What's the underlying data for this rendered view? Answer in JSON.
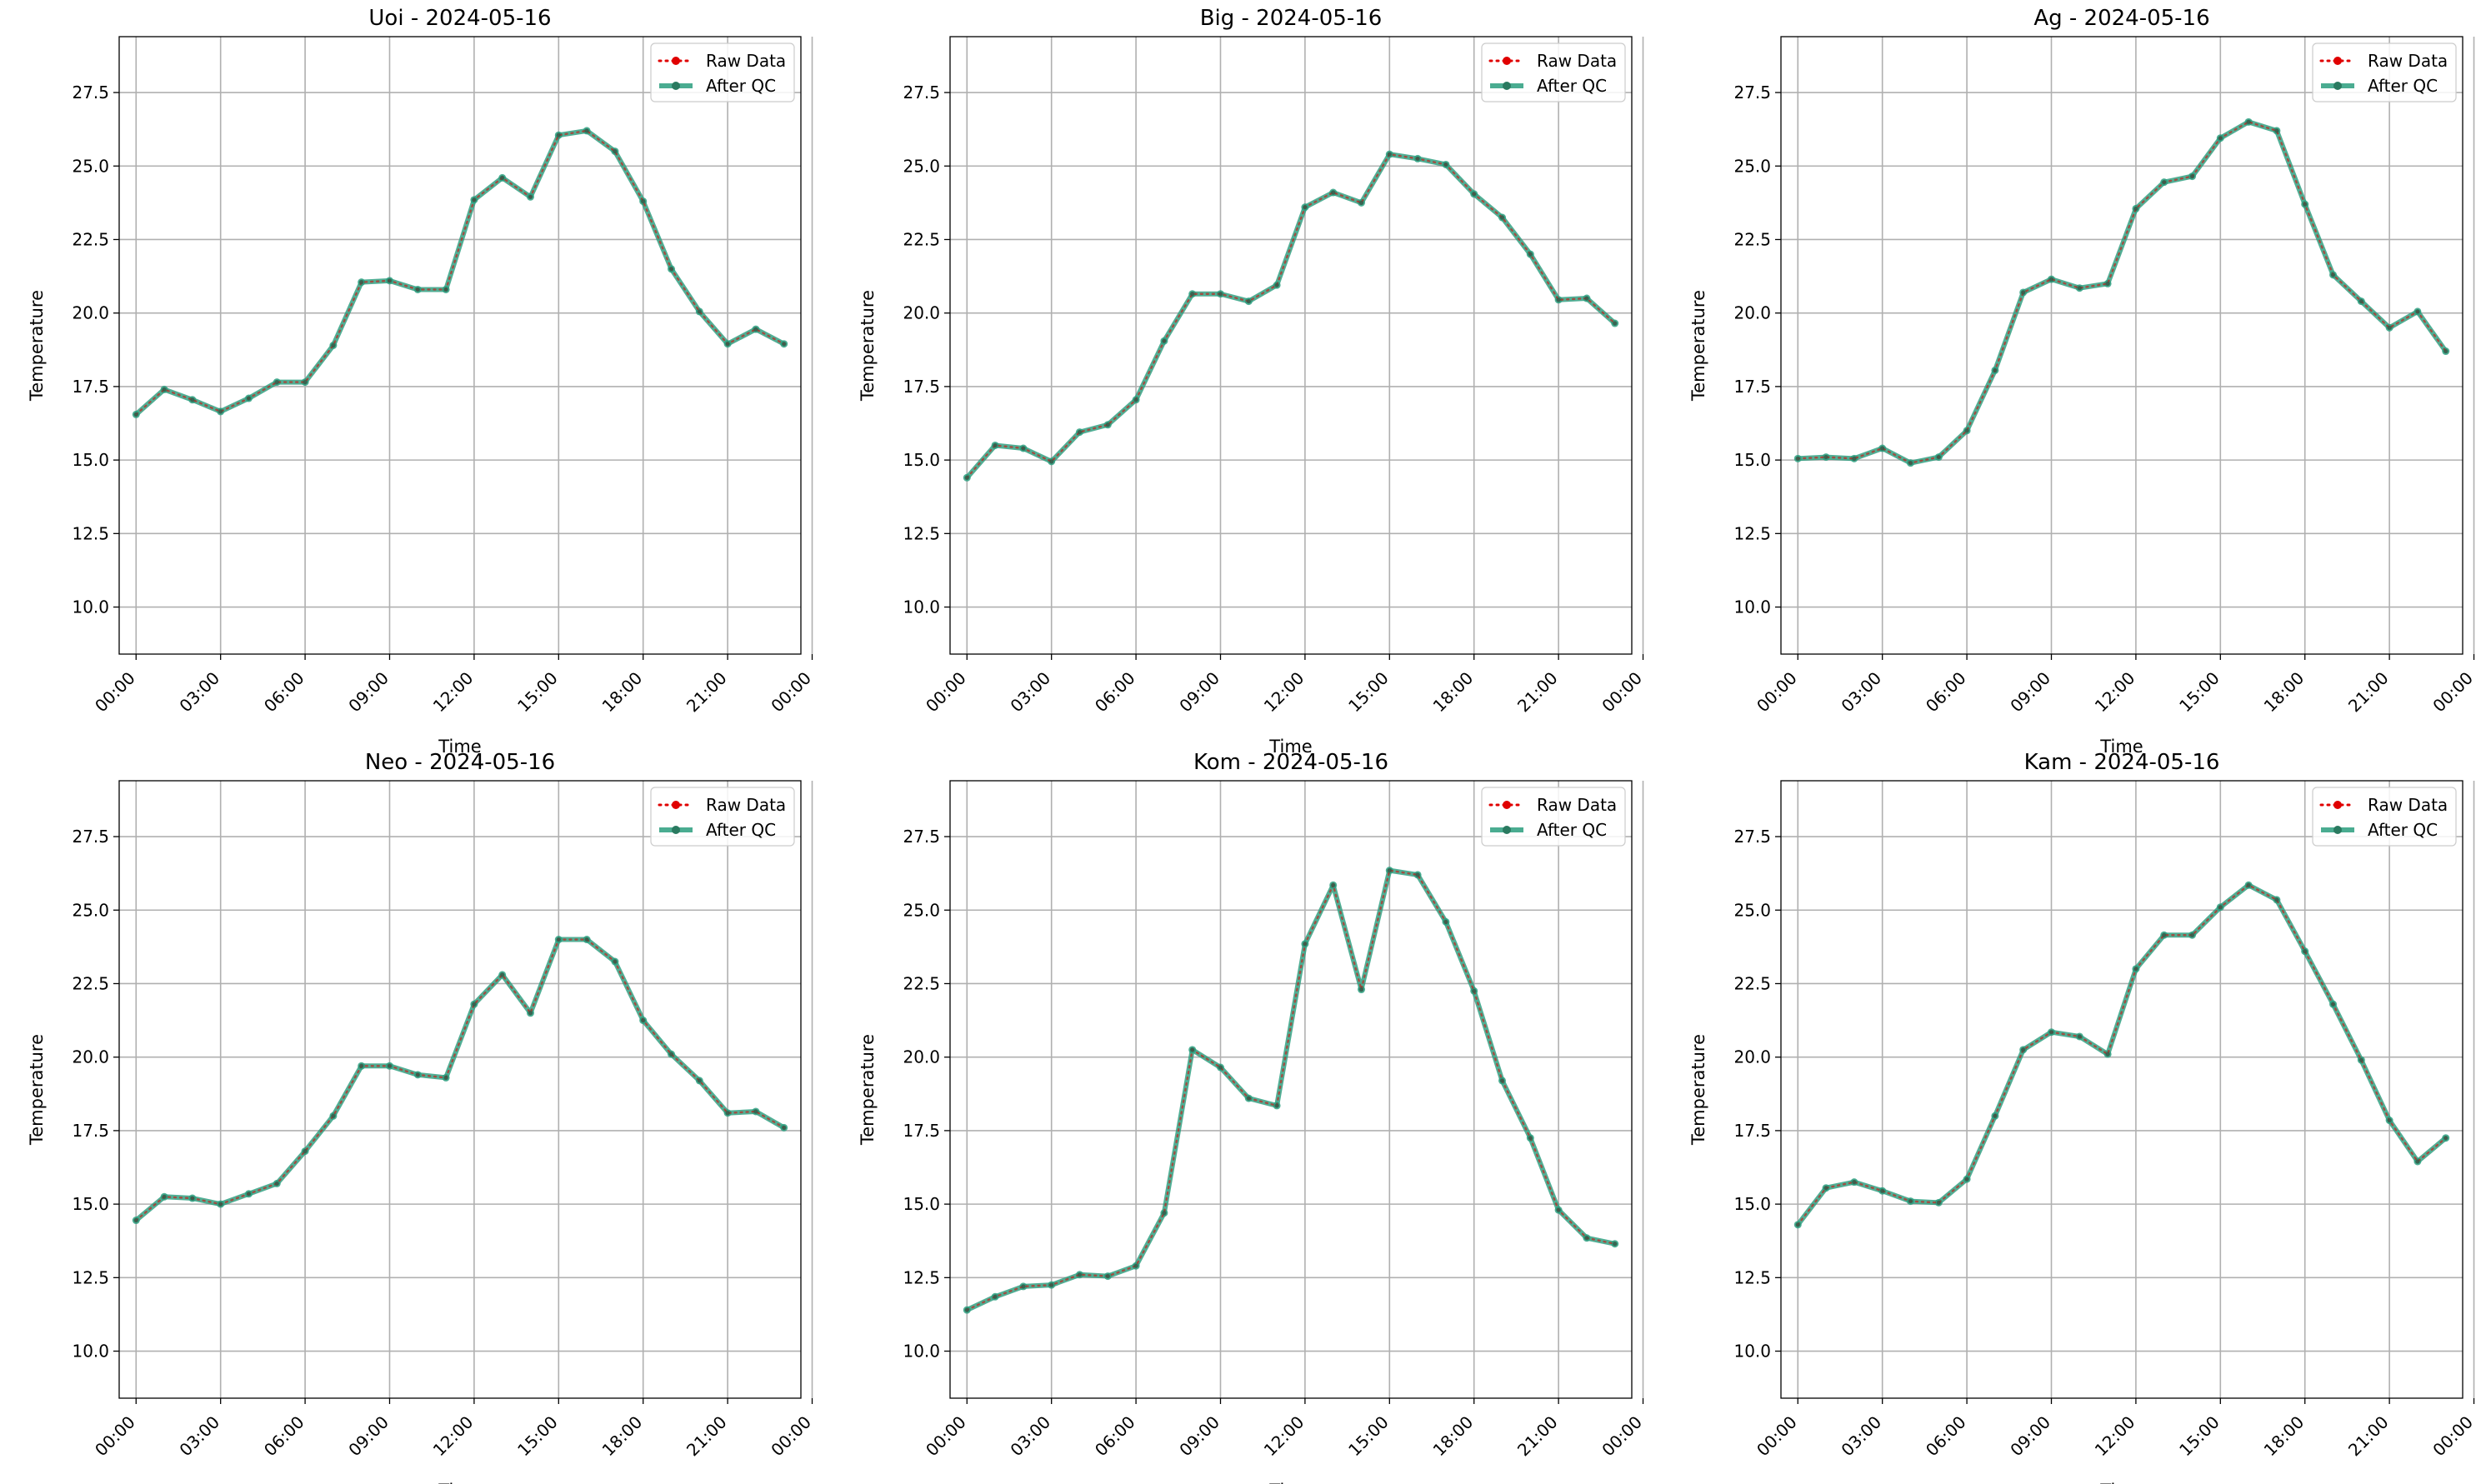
{
  "chart_data": [
    {
      "type": "line",
      "title": "Uoi - 2024-05-16",
      "xlabel": "Time",
      "ylabel": "Temperature",
      "ylim": [
        8.4,
        29.4
      ],
      "xlim": [
        -0.6,
        23.6
      ],
      "xticks": [
        "00:00",
        "03:00",
        "06:00",
        "09:00",
        "12:00",
        "15:00",
        "18:00",
        "21:00",
        "00:00"
      ],
      "yticks": [
        "10.0",
        "12.5",
        "15.0",
        "17.5",
        "20.0",
        "22.5",
        "25.0",
        "27.5"
      ],
      "grid": true,
      "legend": "top-right",
      "series": [
        {
          "name": "Raw Data",
          "color": "#e00000",
          "values": [
            16.55,
            17.4,
            17.05,
            16.65,
            17.1,
            17.65,
            17.65,
            18.9,
            21.05,
            21.1,
            20.8,
            20.8,
            23.85,
            24.6,
            23.95,
            26.05,
            26.2,
            25.5,
            23.8,
            21.5,
            20.05,
            18.95,
            19.45,
            18.95
          ]
        },
        {
          "name": "After QC",
          "color": "#2a9d7e",
          "values": [
            16.55,
            17.4,
            17.05,
            16.65,
            17.1,
            17.65,
            17.65,
            18.9,
            21.05,
            21.1,
            20.8,
            20.8,
            23.85,
            24.6,
            23.95,
            26.05,
            26.2,
            25.5,
            23.8,
            21.5,
            20.05,
            18.95,
            19.45,
            18.95
          ]
        }
      ]
    },
    {
      "type": "line",
      "title": "Big - 2024-05-16",
      "xlabel": "Time",
      "ylabel": "Temperature",
      "ylim": [
        8.4,
        29.4
      ],
      "xlim": [
        -0.6,
        23.6
      ],
      "xticks": [
        "00:00",
        "03:00",
        "06:00",
        "09:00",
        "12:00",
        "15:00",
        "18:00",
        "21:00",
        "00:00"
      ],
      "yticks": [
        "10.0",
        "12.5",
        "15.0",
        "17.5",
        "20.0",
        "22.5",
        "25.0",
        "27.5"
      ],
      "grid": true,
      "legend": "top-right",
      "series": [
        {
          "name": "Raw Data",
          "color": "#e00000",
          "values": [
            14.4,
            15.5,
            15.4,
            14.95,
            15.95,
            16.2,
            17.05,
            19.05,
            20.65,
            20.65,
            20.4,
            20.95,
            23.6,
            24.1,
            23.75,
            25.4,
            25.25,
            25.05,
            24.05,
            23.25,
            22.0,
            20.45,
            20.5,
            19.65
          ]
        },
        {
          "name": "After QC",
          "color": "#2a9d7e",
          "values": [
            14.4,
            15.5,
            15.4,
            14.95,
            15.95,
            16.2,
            17.05,
            19.05,
            20.65,
            20.65,
            20.4,
            20.95,
            23.6,
            24.1,
            23.75,
            25.4,
            25.25,
            25.05,
            24.05,
            23.25,
            22.0,
            20.45,
            20.5,
            19.65
          ]
        }
      ]
    },
    {
      "type": "line",
      "title": "Ag - 2024-05-16",
      "xlabel": "Time",
      "ylabel": "Temperature",
      "ylim": [
        8.4,
        29.4
      ],
      "xlim": [
        -0.6,
        23.6
      ],
      "xticks": [
        "00:00",
        "03:00",
        "06:00",
        "09:00",
        "12:00",
        "15:00",
        "18:00",
        "21:00",
        "00:00"
      ],
      "yticks": [
        "10.0",
        "12.5",
        "15.0",
        "17.5",
        "20.0",
        "22.5",
        "25.0",
        "27.5"
      ],
      "grid": true,
      "legend": "top-right",
      "series": [
        {
          "name": "Raw Data",
          "color": "#e00000",
          "values": [
            15.05,
            15.1,
            15.05,
            15.4,
            14.9,
            15.1,
            16.0,
            18.05,
            20.7,
            21.15,
            20.85,
            21.0,
            23.55,
            24.45,
            24.65,
            25.95,
            26.5,
            26.2,
            23.7,
            21.3,
            20.4,
            19.5,
            20.05,
            18.7
          ]
        },
        {
          "name": "After QC",
          "color": "#2a9d7e",
          "values": [
            15.05,
            15.1,
            15.05,
            15.4,
            14.9,
            15.1,
            16.0,
            18.05,
            20.7,
            21.15,
            20.85,
            21.0,
            23.55,
            24.45,
            24.65,
            25.95,
            26.5,
            26.2,
            23.7,
            21.3,
            20.4,
            19.5,
            20.05,
            18.7
          ]
        }
      ]
    },
    {
      "type": "line",
      "title": "Neo - 2024-05-16",
      "xlabel": "Time",
      "ylabel": "Temperature",
      "ylim": [
        8.4,
        29.4
      ],
      "xlim": [
        -0.6,
        23.6
      ],
      "xticks": [
        "00:00",
        "03:00",
        "06:00",
        "09:00",
        "12:00",
        "15:00",
        "18:00",
        "21:00",
        "00:00"
      ],
      "yticks": [
        "10.0",
        "12.5",
        "15.0",
        "17.5",
        "20.0",
        "22.5",
        "25.0",
        "27.5"
      ],
      "grid": true,
      "legend": "top-right",
      "series": [
        {
          "name": "Raw Data",
          "color": "#e00000",
          "values": [
            14.45,
            15.25,
            15.2,
            15.0,
            15.35,
            15.7,
            16.8,
            18.0,
            19.7,
            19.7,
            19.4,
            19.3,
            21.8,
            22.8,
            21.5,
            24.0,
            24.0,
            23.25,
            21.25,
            20.1,
            19.2,
            18.1,
            18.15,
            17.6
          ]
        },
        {
          "name": "After QC",
          "color": "#2a9d7e",
          "values": [
            14.45,
            15.25,
            15.2,
            15.0,
            15.35,
            15.7,
            16.8,
            18.0,
            19.7,
            19.7,
            19.4,
            19.3,
            21.8,
            22.8,
            21.5,
            24.0,
            24.0,
            23.25,
            21.25,
            20.1,
            19.2,
            18.1,
            18.15,
            17.6
          ]
        }
      ]
    },
    {
      "type": "line",
      "title": "Kom - 2024-05-16",
      "xlabel": "Time",
      "ylabel": "Temperature",
      "ylim": [
        8.4,
        29.4
      ],
      "xlim": [
        -0.6,
        23.6
      ],
      "xticks": [
        "00:00",
        "03:00",
        "06:00",
        "09:00",
        "12:00",
        "15:00",
        "18:00",
        "21:00",
        "00:00"
      ],
      "yticks": [
        "10.0",
        "12.5",
        "15.0",
        "17.5",
        "20.0",
        "22.5",
        "25.0",
        "27.5"
      ],
      "grid": true,
      "legend": "top-right",
      "series": [
        {
          "name": "Raw Data",
          "color": "#e00000",
          "values": [
            11.4,
            11.85,
            12.2,
            12.25,
            12.6,
            12.55,
            12.9,
            14.7,
            20.25,
            19.65,
            18.6,
            18.35,
            23.85,
            25.85,
            22.3,
            26.35,
            26.2,
            24.6,
            22.25,
            19.2,
            17.25,
            14.8,
            13.85,
            13.65
          ]
        },
        {
          "name": "After QC",
          "color": "#2a9d7e",
          "values": [
            11.4,
            11.85,
            12.2,
            12.25,
            12.6,
            12.55,
            12.9,
            14.7,
            20.25,
            19.65,
            18.6,
            18.35,
            23.85,
            25.85,
            22.3,
            26.35,
            26.2,
            24.6,
            22.25,
            19.2,
            17.25,
            14.8,
            13.85,
            13.65
          ]
        }
      ]
    },
    {
      "type": "line",
      "title": "Kam - 2024-05-16",
      "xlabel": "Time",
      "ylabel": "Temperature",
      "ylim": [
        8.4,
        29.4
      ],
      "xlim": [
        -0.6,
        23.6
      ],
      "xticks": [
        "00:00",
        "03:00",
        "06:00",
        "09:00",
        "12:00",
        "15:00",
        "18:00",
        "21:00",
        "00:00"
      ],
      "yticks": [
        "10.0",
        "12.5",
        "15.0",
        "17.5",
        "20.0",
        "22.5",
        "25.0",
        "27.5"
      ],
      "grid": true,
      "legend": "top-right",
      "series": [
        {
          "name": "Raw Data",
          "color": "#e00000",
          "values": [
            14.3,
            15.55,
            15.75,
            15.45,
            15.1,
            15.05,
            15.85,
            18.0,
            20.25,
            20.85,
            20.7,
            20.1,
            23.0,
            24.15,
            24.15,
            25.1,
            25.85,
            25.35,
            23.6,
            21.8,
            19.9,
            17.85,
            16.45,
            17.25
          ]
        },
        {
          "name": "After QC",
          "color": "#2a9d7e",
          "values": [
            14.3,
            15.55,
            15.75,
            15.45,
            15.1,
            15.05,
            15.85,
            18.0,
            20.25,
            20.85,
            20.7,
            20.1,
            23.0,
            24.15,
            24.15,
            25.1,
            25.85,
            25.35,
            23.6,
            21.8,
            19.9,
            17.85,
            16.45,
            17.25
          ]
        }
      ]
    }
  ]
}
